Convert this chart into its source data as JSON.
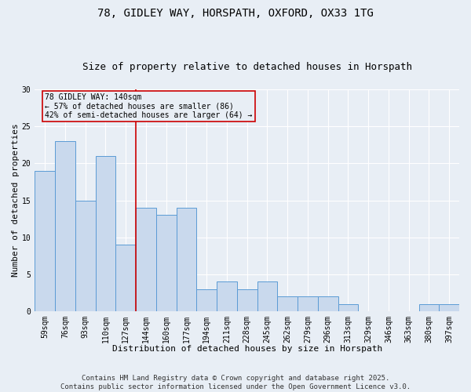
{
  "title1": "78, GIDLEY WAY, HORSPATH, OXFORD, OX33 1TG",
  "title2": "Size of property relative to detached houses in Horspath",
  "xlabel": "Distribution of detached houses by size in Horspath",
  "ylabel": "Number of detached properties",
  "categories": [
    "59sqm",
    "76sqm",
    "93sqm",
    "110sqm",
    "127sqm",
    "144sqm",
    "160sqm",
    "177sqm",
    "194sqm",
    "211sqm",
    "228sqm",
    "245sqm",
    "262sqm",
    "279sqm",
    "296sqm",
    "313sqm",
    "329sqm",
    "346sqm",
    "363sqm",
    "380sqm",
    "397sqm"
  ],
  "values": [
    19,
    23,
    15,
    21,
    9,
    14,
    13,
    14,
    3,
    4,
    3,
    4,
    2,
    2,
    2,
    1,
    0,
    0,
    0,
    1,
    1
  ],
  "bar_color": "#c9d9ed",
  "bar_edge_color": "#5b9bd5",
  "vline_pos": 4.5,
  "vline_color": "#cc0000",
  "annotation_text": "78 GIDLEY WAY: 140sqm\n← 57% of detached houses are smaller (86)\n42% of semi-detached houses are larger (64) →",
  "annotation_box_edge": "#cc0000",
  "background_color": "#e8eef5",
  "grid_color": "#ffffff",
  "ylim": [
    0,
    30
  ],
  "yticks": [
    0,
    5,
    10,
    15,
    20,
    25,
    30
  ],
  "footer": "Contains HM Land Registry data © Crown copyright and database right 2025.\nContains public sector information licensed under the Open Government Licence v3.0.",
  "title_fontsize": 10,
  "subtitle_fontsize": 9,
  "axis_label_fontsize": 8,
  "tick_fontsize": 7,
  "annotation_fontsize": 7,
  "footer_fontsize": 6.5
}
